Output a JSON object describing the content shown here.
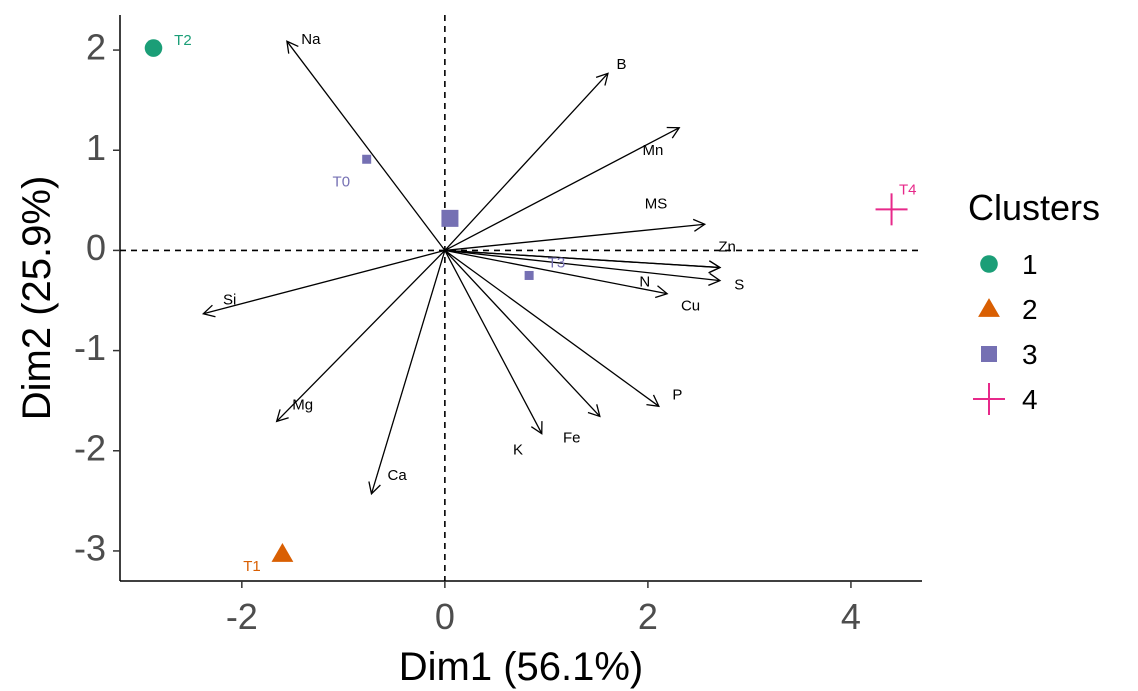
{
  "chart_data": {
    "type": "scatter",
    "subtype": "pca-biplot",
    "xlabel": "Dim1 (56.1%)",
    "ylabel": "Dim2 (25.9%)",
    "xlim": [
      -3.2,
      4.7
    ],
    "ylim": [
      -3.3,
      2.35
    ],
    "x_ticks": [
      -2,
      0,
      2,
      4
    ],
    "y_ticks": [
      -3,
      -2,
      -1,
      0,
      1,
      2
    ],
    "grid": false,
    "reference_lines": {
      "x": 0,
      "y": 0,
      "style": "dashed"
    },
    "variables": [
      {
        "name": "Na",
        "x": -1.55,
        "y": 2.08
      },
      {
        "name": "B",
        "x": 1.6,
        "y": 1.76
      },
      {
        "name": "Mn",
        "x": 2.3,
        "y": 1.22
      },
      {
        "name": "MS",
        "x": 2.55,
        "y": 0.26
      },
      {
        "name": "Zn",
        "x": 2.7,
        "y": -0.17
      },
      {
        "name": "S",
        "x": 2.7,
        "y": -0.3
      },
      {
        "name": "N",
        "x": 2.18,
        "y": -0.43
      },
      {
        "name": "Cu",
        "x": 2.7,
        "y": -0.17
      },
      {
        "name": "P",
        "x": 2.1,
        "y": -1.55
      },
      {
        "name": "Fe",
        "x": 1.52,
        "y": -1.65
      },
      {
        "name": "K",
        "x": 0.95,
        "y": -1.82
      },
      {
        "name": "Ca",
        "x": -0.72,
        "y": -2.42
      },
      {
        "name": "Mg",
        "x": -1.65,
        "y": -1.7
      },
      {
        "name": "Si",
        "x": -2.37,
        "y": -0.63
      }
    ],
    "variable_labels": [
      {
        "name": "Na",
        "x": -1.32,
        "y": 2.1
      },
      {
        "name": "B",
        "x": 1.74,
        "y": 1.85
      },
      {
        "name": "Mn",
        "x": 2.05,
        "y": 0.99
      },
      {
        "name": "MS",
        "x": 2.08,
        "y": 0.46
      },
      {
        "name": "Zn",
        "x": 2.78,
        "y": 0.03
      },
      {
        "name": "S",
        "x": 2.9,
        "y": -0.35
      },
      {
        "name": "N",
        "x": 1.97,
        "y": -0.32
      },
      {
        "name": "Cu",
        "x": 2.42,
        "y": -0.56
      },
      {
        "name": "P",
        "x": 2.29,
        "y": -1.45
      },
      {
        "name": "Fe",
        "x": 1.25,
        "y": -1.88
      },
      {
        "name": "K",
        "x": 0.72,
        "y": -2.0
      },
      {
        "name": "Ca",
        "x": -0.47,
        "y": -2.25
      },
      {
        "name": "Mg",
        "x": -1.4,
        "y": -1.55
      },
      {
        "name": "Si",
        "x": -2.12,
        "y": -0.5
      }
    ],
    "clusters": [
      {
        "name": "1",
        "color": "#1B9E77",
        "shape": "circle"
      },
      {
        "name": "2",
        "color": "#D95F02",
        "shape": "triangle"
      },
      {
        "name": "3",
        "color": "#7570B3",
        "shape": "square"
      },
      {
        "name": "4",
        "color": "#E7298A",
        "shape": "cross"
      }
    ],
    "points": [
      {
        "label": "T2",
        "x": -2.87,
        "y": 2.02,
        "cluster": "1",
        "lx": -2.58,
        "ly": 2.09
      },
      {
        "label": "T1",
        "x": -1.6,
        "y": -3.03,
        "cluster": "2",
        "lx": -1.9,
        "ly": -3.16
      },
      {
        "label": "T0",
        "x": -0.77,
        "y": 0.91,
        "cluster": "3",
        "lx": -1.02,
        "ly": 0.68
      },
      {
        "label": "T3",
        "x": 0.83,
        "y": -0.25,
        "cluster": "3",
        "lx": 1.1,
        "ly": -0.13
      },
      {
        "label": "T4",
        "x": 4.4,
        "y": 0.41,
        "cluster": "4",
        "lx": 4.56,
        "ly": 0.6
      }
    ],
    "centroids": [
      {
        "cluster": "3",
        "x": 0.05,
        "y": 0.32
      }
    ],
    "legend": {
      "title": "Clusters",
      "position": "right",
      "entries": [
        "1",
        "2",
        "3",
        "4"
      ]
    }
  }
}
